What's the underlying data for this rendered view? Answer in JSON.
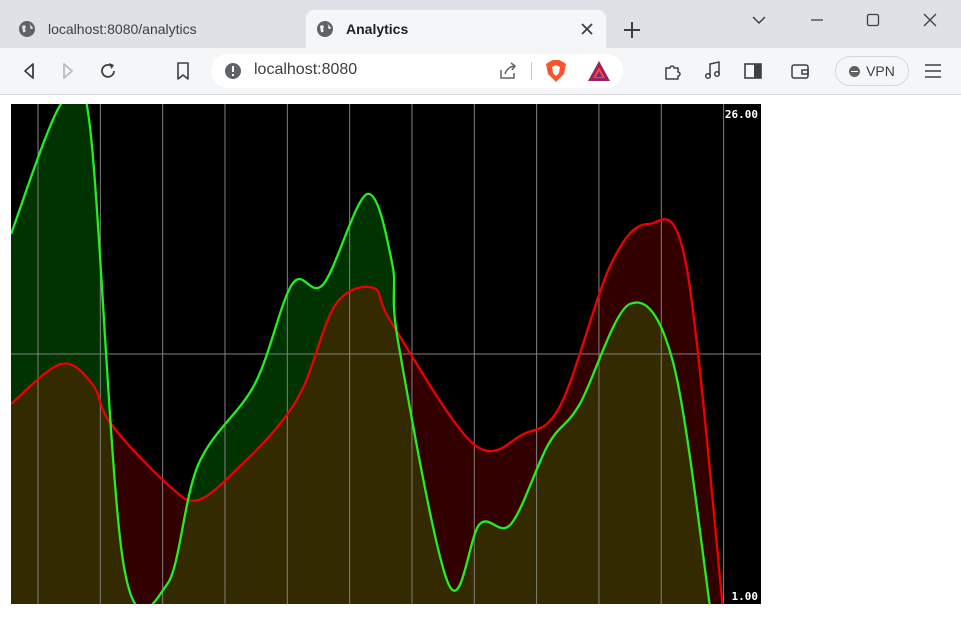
{
  "browser": {
    "tabs": [
      {
        "title": "localhost:8080/analytics",
        "active": false
      },
      {
        "title": "Analytics",
        "active": true
      }
    ],
    "address": "localhost:8080",
    "vpn_label": "VPN"
  },
  "colors": {
    "chart_background": "#000000",
    "grid": "#808080",
    "series_green": "#22ee22",
    "series_red": "#ee0000",
    "fill_green": "#003300",
    "fill_red": "#330000",
    "fill_overlap": "#332a00"
  },
  "chart_data": {
    "type": "area",
    "ymin": 1,
    "ymax": 26,
    "y_labels": {
      "max": "26.00",
      "min": "1.00"
    },
    "x_range": [
      0,
      12
    ],
    "grid": {
      "vertical_lines": 12,
      "horizontal_midline": true
    },
    "series": [
      {
        "color": "green",
        "x": [
          0,
          0.8,
          1.25,
          1.8,
          2.5,
          3.0,
          3.9,
          4.5,
          5.0,
          5.7,
          6.1,
          6.2,
          7.0,
          7.5,
          8.0,
          8.6,
          9.1,
          9.9,
          10.6,
          11.2
        ],
        "y": [
          19.5,
          26,
          25.2,
          3,
          2,
          8,
          12,
          17,
          17,
          21.5,
          18,
          14,
          2,
          5,
          5,
          9,
          11,
          16,
          13,
          0.5
        ]
      },
      {
        "color": "red",
        "x": [
          0,
          0.8,
          1.3,
          1.6,
          2.5,
          3.0,
          3.7,
          4.3,
          4.7,
          5.2,
          5.8,
          6.1,
          7.4,
          8.2,
          8.8,
          9.6,
          10.2,
          10.8,
          11.4
        ],
        "y": [
          11,
          13,
          12,
          10,
          7,
          6.2,
          8,
          10,
          12,
          16,
          16.8,
          15,
          9,
          9.5,
          11,
          18,
          20,
          18,
          0.5
        ]
      }
    ]
  }
}
